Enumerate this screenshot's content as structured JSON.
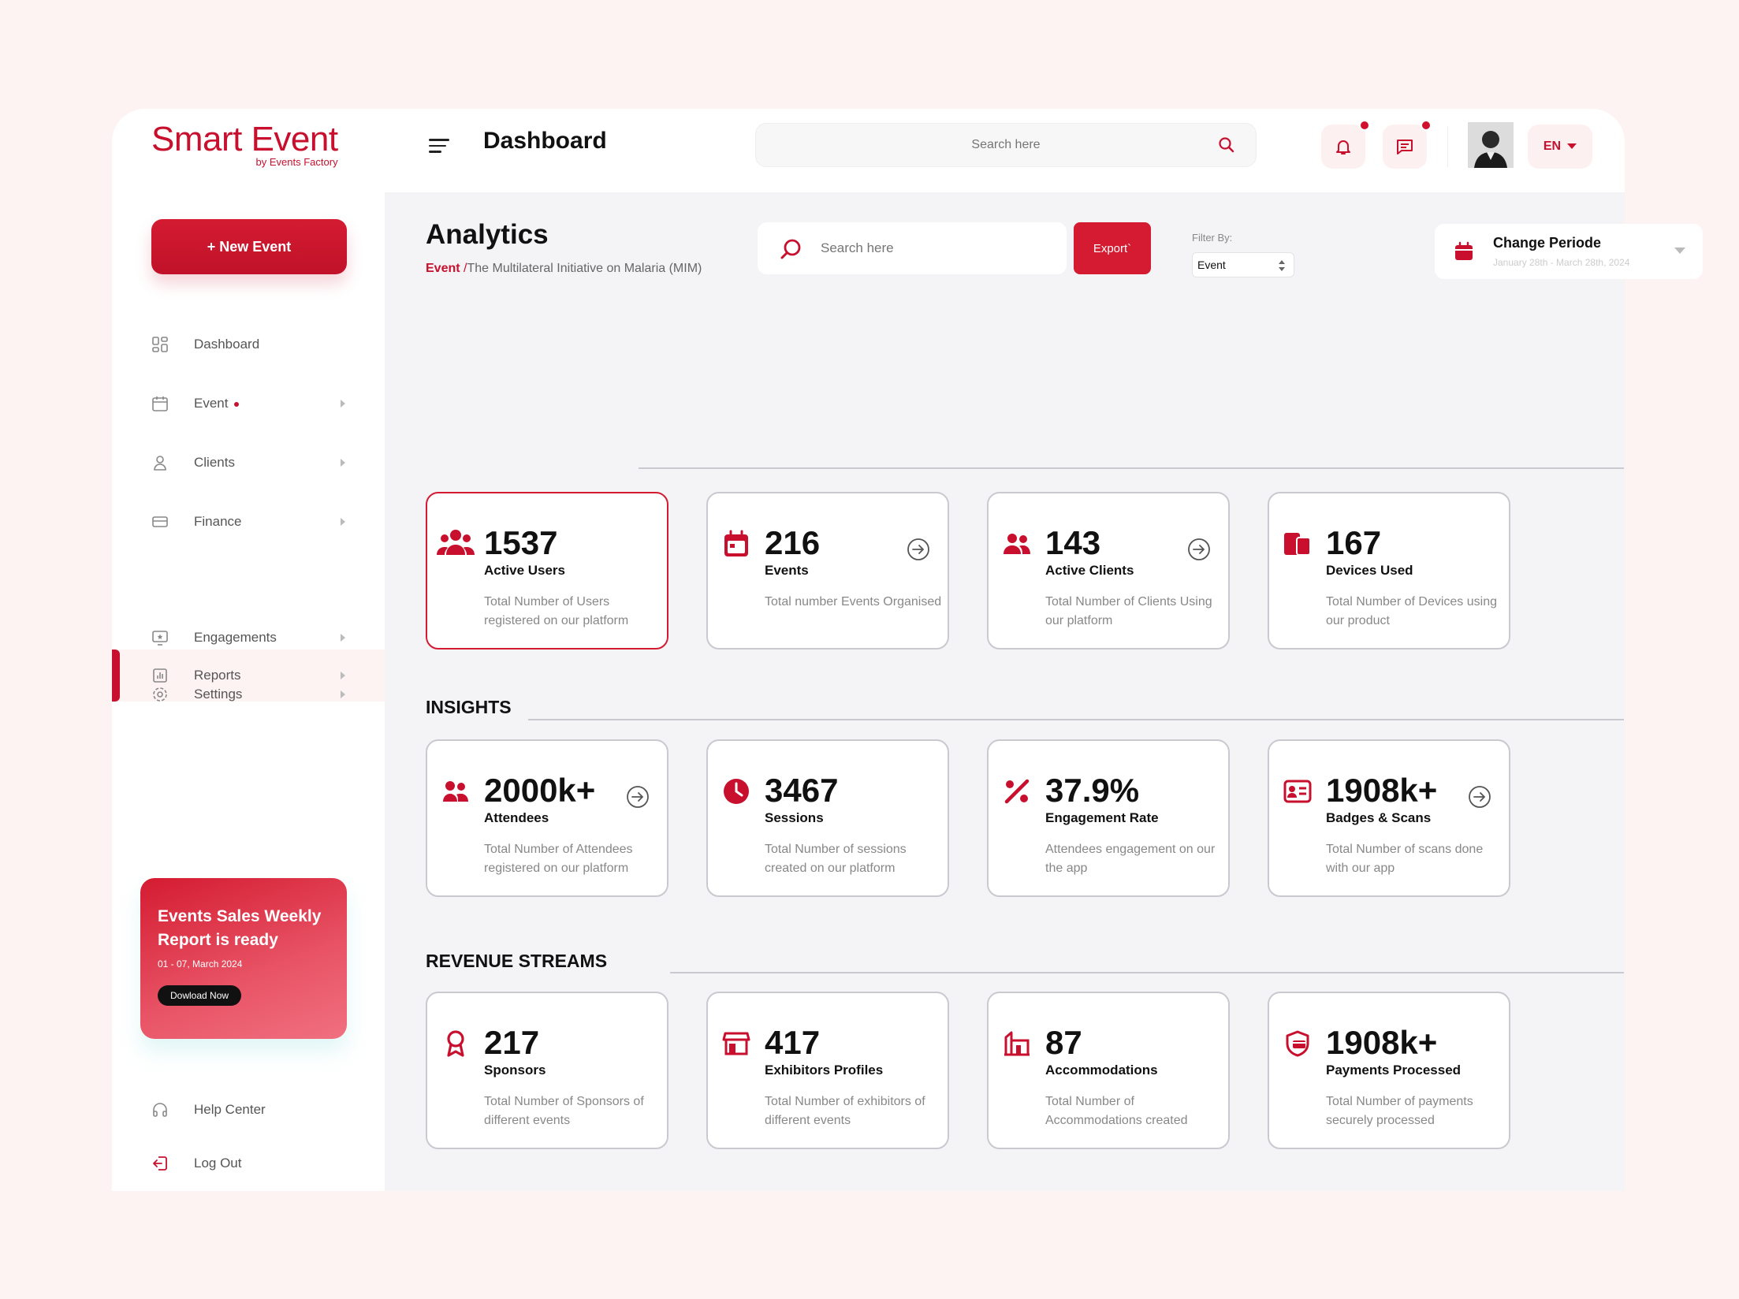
{
  "app": {
    "logo_main": "Smart Event",
    "logo_sub": "by Events Factory",
    "page_title": "Dashboard",
    "search_placeholder": "Search here",
    "language": "EN",
    "brand_color": "#c8102e"
  },
  "sidebar": {
    "new_event_label": "+ New Event",
    "items": [
      {
        "label": "Dashboard",
        "icon": "grid-icon"
      },
      {
        "label": "Event",
        "icon": "calendar-icon"
      },
      {
        "label": "Clients",
        "icon": "user-icon"
      },
      {
        "label": "Finance",
        "icon": "card-icon"
      },
      {
        "label": "Reports",
        "icon": "chart-icon"
      },
      {
        "label": "Engagements",
        "icon": "monitor-star-icon"
      },
      {
        "label": "Settings",
        "icon": "gear-icon"
      }
    ],
    "promo": {
      "title": "Events Sales Weekly Report is ready",
      "date": "01 - 07, March 2024",
      "button": "Dowload Now"
    },
    "help_label": "Help Center",
    "logout_label": "Log Out"
  },
  "main": {
    "title": "Analytics",
    "breadcrumb_event": "Event",
    "breadcrumb_sep": "/",
    "breadcrumb_page": "The Multilateral Initiative on Malaria (MIM)",
    "search_placeholder": "Search here",
    "export_label": "Export`",
    "filter_label": "Filter By:",
    "filter_value": "Event",
    "period_title": "Change Periode",
    "period_range": "January 28th - March 28th, 2024"
  },
  "sections": {
    "insights": "INSIGHTS",
    "revenue": "REVENUE STREAMS"
  },
  "overview_cards": [
    {
      "value": "1537",
      "label": "Active Users",
      "desc": "Total Number of Users registered on our platform",
      "icon": "users-group-icon"
    },
    {
      "value": "216",
      "label": "Events",
      "desc": "Total number Events Organised",
      "icon": "calendar-icon"
    },
    {
      "value": "143",
      "label": "Active Clients",
      "desc": "Total Number of Clients Using our platform",
      "icon": "clients-icon"
    },
    {
      "value": "167",
      "label": "Devices Used",
      "desc": "Total Number of Devices using our product",
      "icon": "devices-icon"
    }
  ],
  "insight_cards": [
    {
      "value": "2000k+",
      "label": "Attendees",
      "desc": "Total Number of Attendees registered on our platform",
      "icon": "attendees-icon"
    },
    {
      "value": "3467",
      "label": "Sessions",
      "desc": "Total Number of sessions created on our platform",
      "icon": "clock-icon"
    },
    {
      "value": "37.9%",
      "label": "Engagement Rate",
      "desc": "Attendees engagement on our the app",
      "icon": "percent-icon"
    },
    {
      "value": "1908k+",
      "label": "Badges & Scans",
      "desc": "Total Number of scans done with our app",
      "icon": "badge-icon"
    }
  ],
  "revenue_cards": [
    {
      "value": "217",
      "label": "Sponsors",
      "desc": "Total Number of Sponsors of different events",
      "icon": "ribbon-icon"
    },
    {
      "value": "417",
      "label": "Exhibitors Profiles",
      "desc": "Total Number of exhibitors of different events",
      "icon": "store-icon"
    },
    {
      "value": "87",
      "label": "Accommodations",
      "desc": "Total Number of Accommodations created",
      "icon": "building-icon"
    },
    {
      "value": "1908k+",
      "label": "Payments Processed",
      "desc": "Total Number of payments securely processed",
      "icon": "shield-card-icon"
    }
  ]
}
